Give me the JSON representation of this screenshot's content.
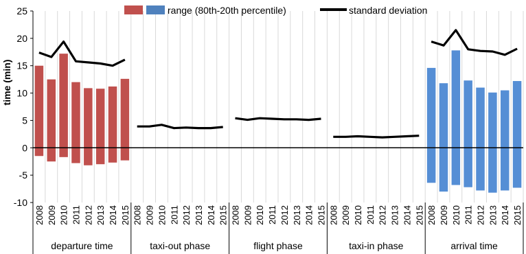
{
  "chart_data": {
    "type": "bar",
    "ylabel": "time (min)",
    "ylim": [
      -10,
      25
    ],
    "yticks": [
      -10,
      -5,
      0,
      5,
      10,
      15,
      20,
      25
    ],
    "grid": "vertical",
    "legend_position": "top",
    "legend": {
      "range_label": "range (80th-20th percentile)",
      "sd_label": "standard deviation"
    },
    "years": [
      "2008",
      "2009",
      "2010",
      "2011",
      "2012",
      "2013",
      "2014",
      "2015"
    ],
    "groups": [
      {
        "name": "departure time",
        "color": "#c0504d",
        "range_top": [
          15,
          12.5,
          17.2,
          12,
          10.9,
          10.8,
          11.2,
          12.6
        ],
        "range_bottom": [
          -1.5,
          -2.5,
          -1.7,
          -2.8,
          -3.2,
          -3,
          -2.7,
          -2.3
        ],
        "std_dev": [
          17.4,
          16.6,
          19.4,
          15.8,
          15.6,
          15.4,
          15,
          16.1
        ]
      },
      {
        "name": "taxi-out phase",
        "color": "#4f81bd",
        "range_top": null,
        "range_bottom": null,
        "std_dev": [
          3.9,
          3.9,
          4.2,
          3.6,
          3.7,
          3.6,
          3.6,
          3.8
        ]
      },
      {
        "name": "flight phase",
        "color": "#4f81bd",
        "range_top": null,
        "range_bottom": null,
        "std_dev": [
          5.4,
          5.1,
          5.4,
          5.3,
          5.2,
          5.2,
          5.1,
          5.3
        ]
      },
      {
        "name": "taxi-in phase",
        "color": "#4f81bd",
        "range_top": null,
        "range_bottom": null,
        "std_dev": [
          2,
          2,
          2.1,
          2,
          1.9,
          2,
          2.1,
          2.2
        ]
      },
      {
        "name": "arrival time",
        "color": "#558ed5",
        "range_top": [
          14.6,
          11.8,
          17.8,
          12.3,
          11,
          10.1,
          10.5,
          12.2
        ],
        "range_bottom": [
          -6.4,
          -8,
          -6.8,
          -7.2,
          -7.8,
          -8.2,
          -7.8,
          -7.3
        ],
        "std_dev": [
          19.4,
          18.7,
          21.5,
          18,
          17.7,
          17.6,
          17,
          18.1
        ]
      }
    ]
  },
  "colors": {
    "departure_bar": "#c0504d",
    "arrival_bar": "#558ed5",
    "legend_blue": "#4f81bd",
    "sd_line": "#000000",
    "grid": "#d9d9d9"
  }
}
